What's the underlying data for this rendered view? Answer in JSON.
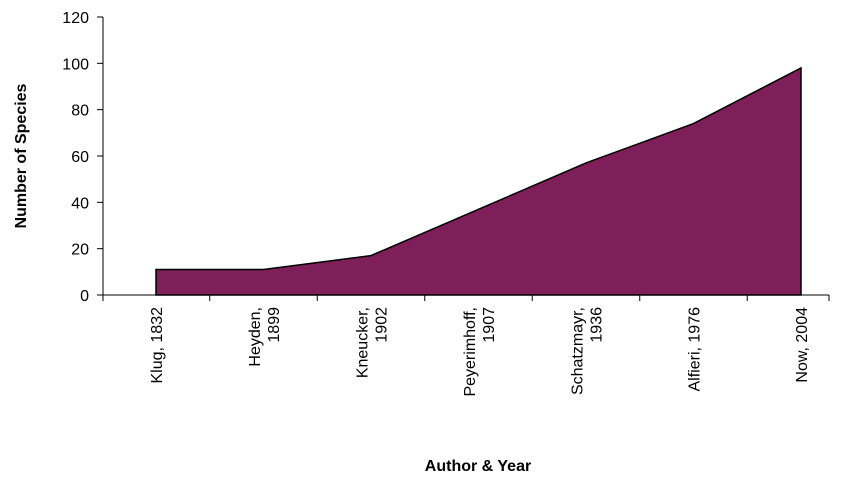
{
  "chart_data": {
    "type": "area",
    "title": "",
    "xlabel": "Author & Year",
    "ylabel": "Number of Species",
    "categories": [
      [
        "Klug, 1832"
      ],
      [
        "Heyden,",
        "1899"
      ],
      [
        "Kneucker,",
        "1902"
      ],
      [
        "Peyerimhoff,",
        "1907"
      ],
      [
        "Schatzmayr,",
        "1936"
      ],
      [
        "Alfieri, 1976"
      ],
      [
        "Now, 2004"
      ]
    ],
    "series": [
      {
        "values": [
          11,
          11,
          17,
          37,
          57,
          74,
          98
        ]
      }
    ],
    "ylim": [
      0,
      120
    ],
    "yticks": [
      0,
      20,
      40,
      60,
      80,
      100,
      120
    ],
    "grid": false,
    "legend": "none",
    "colors": {
      "fill": "#7f1f5a",
      "stroke": "#000000",
      "axis": "#000000"
    }
  }
}
